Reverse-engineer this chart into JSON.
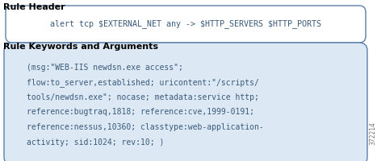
{
  "title1": "Rule Header",
  "title2": "Rule Keywords and Arguments",
  "header_text": "alert tcp $EXTERNAL_NET any -> $HTTP_SERVERS $HTTP_PORTS",
  "body_lines": [
    "(msg:\"WEB-IIS newdsn.exe access\";",
    "flow:to_server,established; uricontent:\"/scripts/",
    "tools/newdsn.exe\"; nocase; metadata:service http;",
    "reference:bugtraq,1818; reference:cve,1999-0191;",
    "reference:nessus,10360; classtype:web-application-",
    "activity; sid:1024; rev:10; )"
  ],
  "watermark": "372214",
  "bg_color": "#ffffff",
  "box1_fill": "#ffffff",
  "box2_fill": "#dce9f5",
  "box_edge_color": "#5b7faa",
  "title_color": "#000000",
  "mono_text_color": "#3a5a7a",
  "title_fontsize": 8.0,
  "header_fontsize": 7.2,
  "body_fontsize": 7.0
}
